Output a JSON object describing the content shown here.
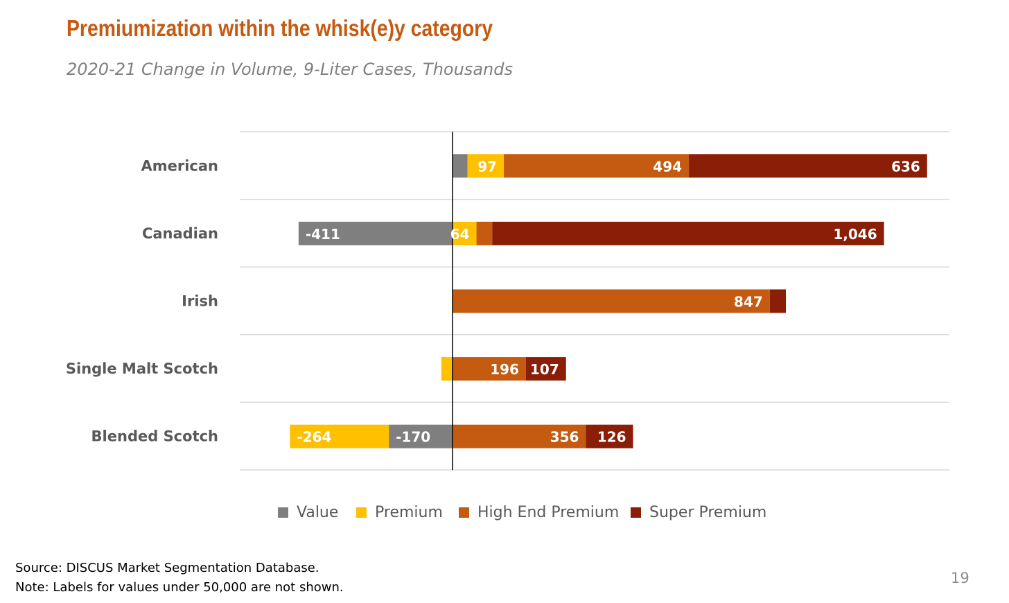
{
  "title": "Premiumization within the whisk(e)y category",
  "subtitle": "2020-21 Change in Volume, 9-Liter Cases, Thousands",
  "source_lines": [
    "Source: DISCUS Market Segmentation Database.",
    "Note:  Labels for values under 50,000 are not shown."
  ],
  "page_number": "19",
  "colors": {
    "Value": "#7F7F7F",
    "Premium": "#FFC000",
    "High End Premium": "#C55A11",
    "Super Premium": "#8B1E06"
  },
  "chart_data": {
    "type": "bar",
    "orientation": "horizontal",
    "stacked": true,
    "categories": [
      "American",
      "Canadian",
      "Irish",
      "Single Malt Scotch",
      "Blended Scotch"
    ],
    "series": [
      {
        "name": "Value",
        "values": [
          40,
          -411,
          0,
          0,
          -170
        ]
      },
      {
        "name": "Premium",
        "values": [
          97,
          64,
          0,
          -30,
          -264
        ]
      },
      {
        "name": "High End Premium",
        "values": [
          494,
          42,
          847,
          196,
          356
        ]
      },
      {
        "name": "Super Premium",
        "values": [
          636,
          1046,
          43,
          107,
          126
        ]
      }
    ],
    "data_labels": [
      [
        "",
        "97",
        "494",
        "636"
      ],
      [
        "-411",
        "64",
        "",
        "1,046"
      ],
      [
        "",
        "",
        "847",
        ""
      ],
      [
        "",
        "",
        "196",
        "107"
      ],
      [
        "-170",
        "-264",
        "356",
        "126"
      ]
    ],
    "xlim": [
      -600,
      1400
    ],
    "grid": true,
    "legend_position": "bottom",
    "note": "Labels for values under 50,000 are not shown."
  }
}
